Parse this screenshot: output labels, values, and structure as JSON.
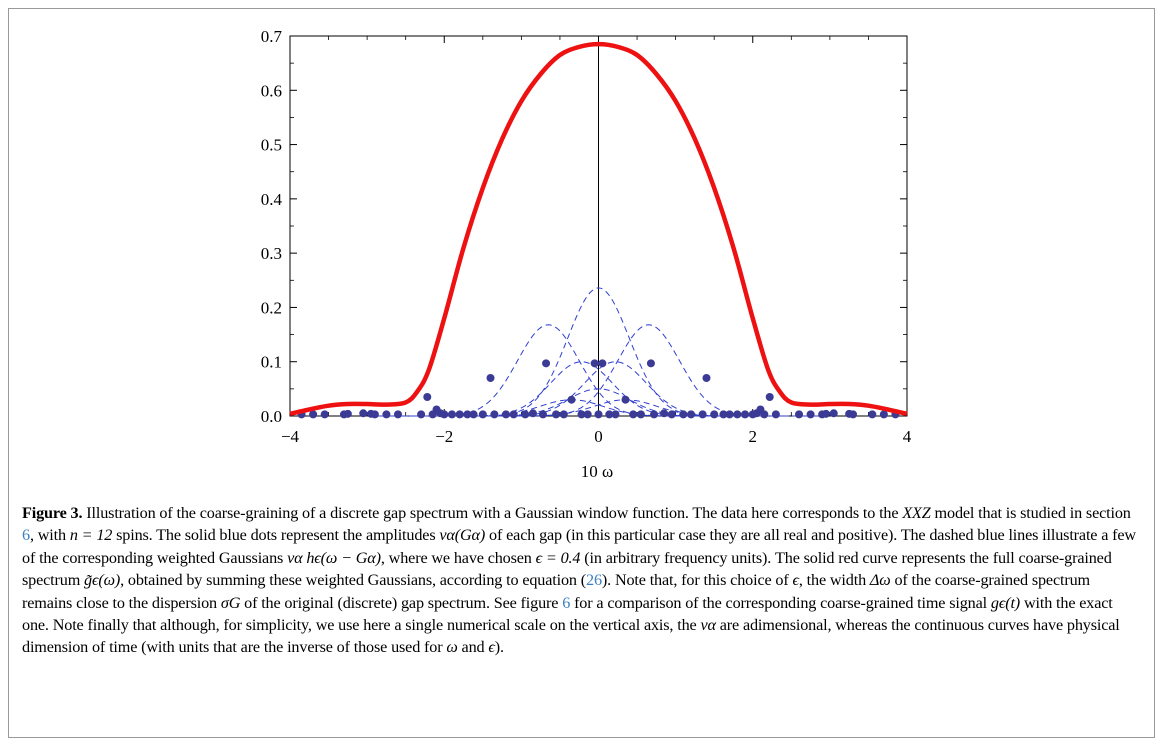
{
  "figure": {
    "label": "Figure 3.",
    "xlabel": "10 ω",
    "caption": {
      "s1": " Illustration of the coarse-graining of a discrete gap spectrum with a Gaussian window function. The data here corresponds to the ",
      "model": "XXZ",
      "s2": " model that is studied in section ",
      "ref_section": "6",
      "s3": ", with ",
      "n_eq": "n = 12",
      "s4": " spins. The solid blue dots represent the amplitudes ",
      "nu_G": "να(Gα)",
      "s5": " of each gap (in this particular case they are all real and positive). The dashed blue lines illustrate a few of the corresponding weighted Gaussians ",
      "nu_h": "να hϵ(ω − Gα)",
      "s6": ", where we have chosen ",
      "eps_eq": "ϵ = 0.4",
      "s7": " (in arbitrary frequency units). The solid red curve represents the full coarse-grained spectrum ",
      "g_tilde": "g̃ϵ(ω)",
      "s8": ", obtained by summing these weighted Gaussians, according to equation (",
      "ref_eq": "26",
      "s9": "). Note that, for this choice of ",
      "eps": "ϵ",
      "s10": ", the width ",
      "delta_omega": "Δω",
      "s11": " of the coarse-grained spectrum remains close to the dispersion ",
      "sigma_G": "σG",
      "s12": " of the original (discrete) gap spectrum. See figure ",
      "ref_fig": "6",
      "s13": " for a comparison of the corresponding coarse-grained time signal ",
      "g_t": "gϵ(t)",
      "s14": " with the exact one. Note finally that although, for simplicity, we use here a single numerical scale on the vertical axis, the ",
      "nu": "να",
      "s15": " are adimensional, whereas the continuous curves have physical dimension of time (with units that are the inverse of those used for ",
      "omega": "ω",
      "s16": " and ",
      "eps2": "ϵ",
      "s17": ")."
    }
  },
  "chart_data": {
    "type": "scatter",
    "xlim": [
      -4,
      4
    ],
    "ylim": [
      0,
      0.7
    ],
    "xticks": [
      -4,
      -2,
      0,
      2,
      4
    ],
    "xtick_labels": [
      "−4",
      "−2",
      "0",
      "2",
      "4"
    ],
    "yticks": [
      0.0,
      0.1,
      0.2,
      0.3,
      0.4,
      0.5,
      0.6,
      0.7
    ],
    "ytick_labels": [
      "0.0",
      "0.1",
      "0.2",
      "0.3",
      "0.4",
      "0.5",
      "0.6",
      "0.7"
    ],
    "xlabel": "10 ω",
    "ylabel": "",
    "grid": false,
    "colors": {
      "curve": "#ee1111",
      "dots": "#3b3b96",
      "dashed": "#2f3fd0"
    },
    "series": [
      {
        "kind": "solid-curve",
        "x": [
          -4,
          -3.75,
          -3.5,
          -3.25,
          -3,
          -2.75,
          -2.5,
          -2.35,
          -2.2,
          -2,
          -1.75,
          -1.5,
          -1.25,
          -1,
          -0.75,
          -0.5,
          -0.25,
          0,
          0.25,
          0.5,
          0.75,
          1,
          1.25,
          1.5,
          1.75,
          2,
          2.2,
          2.35,
          2.5,
          2.75,
          3,
          3.25,
          3.5,
          3.75,
          4
        ],
        "y": [
          0.004,
          0.012,
          0.019,
          0.022,
          0.022,
          0.021,
          0.025,
          0.045,
          0.085,
          0.18,
          0.31,
          0.42,
          0.51,
          0.58,
          0.63,
          0.665,
          0.68,
          0.685,
          0.68,
          0.665,
          0.63,
          0.58,
          0.51,
          0.42,
          0.31,
          0.18,
          0.085,
          0.045,
          0.025,
          0.021,
          0.022,
          0.022,
          0.019,
          0.012,
          0.004
        ]
      },
      {
        "kind": "dashed-gaussians",
        "gaussians": [
          {
            "center": 0,
            "amp": 0.236
          },
          {
            "center": -0.65,
            "amp": 0.168
          },
          {
            "center": 0.65,
            "amp": 0.168
          },
          {
            "center": -0.22,
            "amp": 0.1
          },
          {
            "center": 0.22,
            "amp": 0.1
          },
          {
            "center": 0,
            "amp": 0.05
          },
          {
            "center": -0.35,
            "amp": 0.03
          },
          {
            "center": 0.35,
            "amp": 0.03
          }
        ],
        "sigma": 0.4
      },
      {
        "kind": "dots",
        "points": [
          [
            -3.85,
            0.003
          ],
          [
            -3.7,
            0.003
          ],
          [
            -3.55,
            0.003
          ],
          [
            -3.3,
            0.003
          ],
          [
            -3.25,
            0.004
          ],
          [
            -3.05,
            0.005
          ],
          [
            -2.95,
            0.004
          ],
          [
            -2.9,
            0.003
          ],
          [
            -2.75,
            0.003
          ],
          [
            -2.6,
            0.003
          ],
          [
            -2.3,
            0.003
          ],
          [
            -2.22,
            0.035
          ],
          [
            -2.15,
            0.003
          ],
          [
            -2.1,
            0.012
          ],
          [
            -2.05,
            0.005
          ],
          [
            -2.0,
            0.003
          ],
          [
            -1.9,
            0.003
          ],
          [
            -1.8,
            0.003
          ],
          [
            -1.7,
            0.003
          ],
          [
            -1.62,
            0.003
          ],
          [
            -1.5,
            0.003
          ],
          [
            -1.4,
            0.07
          ],
          [
            -1.35,
            0.003
          ],
          [
            -1.2,
            0.003
          ],
          [
            -1.1,
            0.003
          ],
          [
            -0.95,
            0.003
          ],
          [
            -0.85,
            0.005
          ],
          [
            -0.72,
            0.003
          ],
          [
            -0.68,
            0.097
          ],
          [
            -0.55,
            0.003
          ],
          [
            -0.45,
            0.003
          ],
          [
            -0.35,
            0.03
          ],
          [
            -0.22,
            0.003
          ],
          [
            -0.14,
            0.003
          ],
          [
            -0.05,
            0.097
          ],
          [
            0,
            0.003
          ],
          [
            0.05,
            0.097
          ],
          [
            0.14,
            0.003
          ],
          [
            0.22,
            0.003
          ],
          [
            0.35,
            0.03
          ],
          [
            0.45,
            0.003
          ],
          [
            0.55,
            0.003
          ],
          [
            0.68,
            0.097
          ],
          [
            0.72,
            0.003
          ],
          [
            0.85,
            0.005
          ],
          [
            0.95,
            0.003
          ],
          [
            1.1,
            0.003
          ],
          [
            1.2,
            0.003
          ],
          [
            1.35,
            0.003
          ],
          [
            1.4,
            0.07
          ],
          [
            1.5,
            0.003
          ],
          [
            1.62,
            0.003
          ],
          [
            1.7,
            0.003
          ],
          [
            1.8,
            0.003
          ],
          [
            1.9,
            0.003
          ],
          [
            2.0,
            0.003
          ],
          [
            2.05,
            0.005
          ],
          [
            2.1,
            0.012
          ],
          [
            2.15,
            0.003
          ],
          [
            2.22,
            0.035
          ],
          [
            2.3,
            0.003
          ],
          [
            2.6,
            0.003
          ],
          [
            2.75,
            0.003
          ],
          [
            2.9,
            0.003
          ],
          [
            2.95,
            0.004
          ],
          [
            3.05,
            0.005
          ],
          [
            3.25,
            0.004
          ],
          [
            3.3,
            0.003
          ],
          [
            3.55,
            0.003
          ],
          [
            3.7,
            0.003
          ],
          [
            3.85,
            0.003
          ]
        ]
      }
    ]
  }
}
